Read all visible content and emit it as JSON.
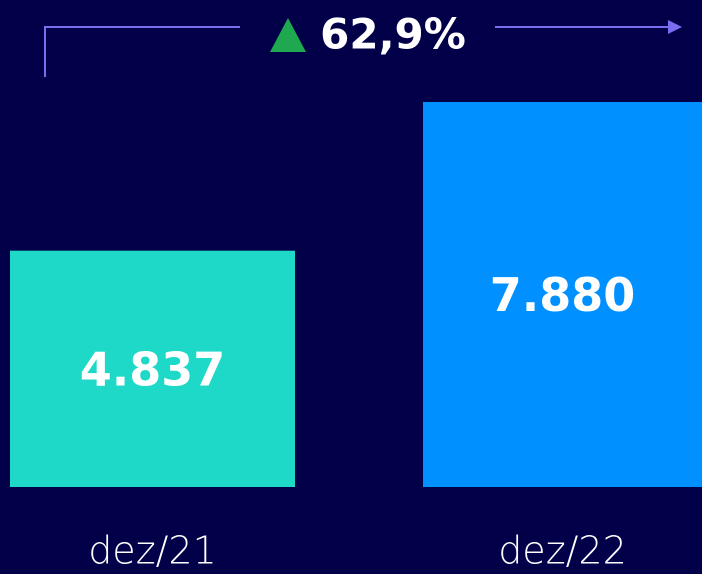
{
  "chart_data": {
    "type": "bar",
    "categories": [
      "dez/21",
      "dez/22"
    ],
    "values": [
      4837,
      7880
    ],
    "value_labels": [
      "4.837",
      "7.880"
    ],
    "colors": [
      "#1fd9c8",
      "#0090ff"
    ],
    "annotation": "62,9%"
  }
}
